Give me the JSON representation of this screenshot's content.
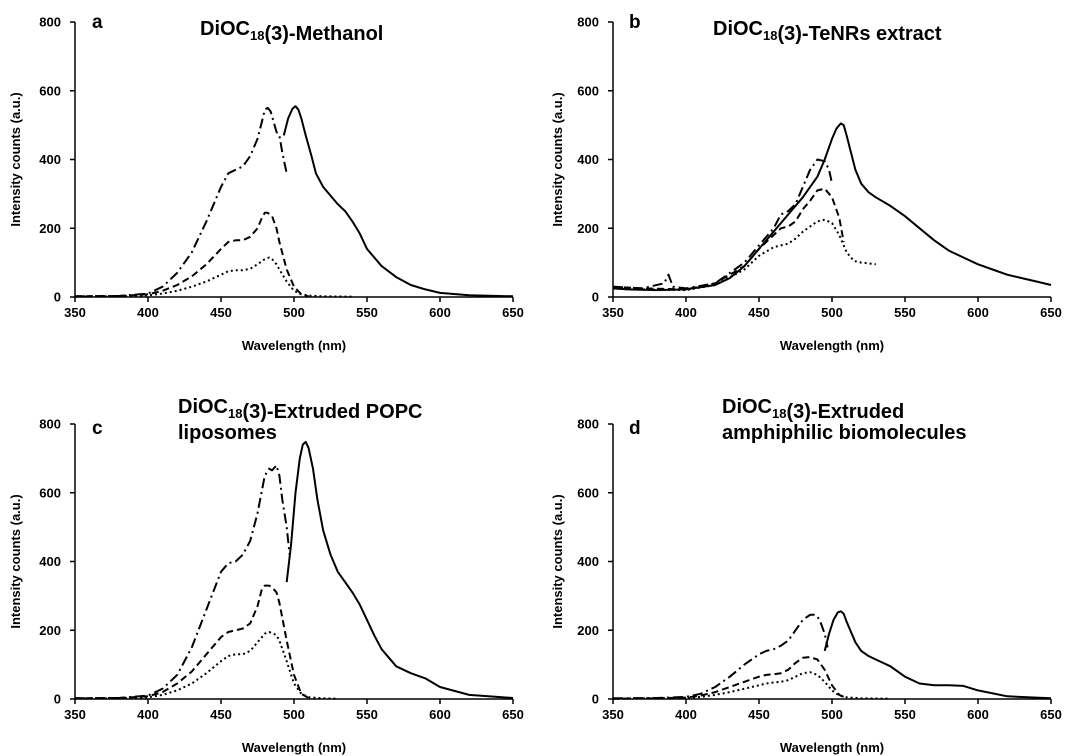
{
  "chart_data": [
    {
      "panel": "a",
      "type": "line",
      "title_parts": [
        {
          "t": "DiOC"
        },
        {
          "t": "18",
          "sub": true
        },
        {
          "t": "(3)-Methanol"
        }
      ],
      "title_lines": 1,
      "xlabel": "Wavelength (nm)",
      "ylabel": "Intensity counts (a.u.)",
      "xlim": [
        350,
        650
      ],
      "ylim": [
        0,
        800
      ],
      "xticks": [
        "350",
        "400",
        "450",
        "500",
        "550",
        "600",
        "650"
      ],
      "yticks": [
        "0",
        "200",
        "400",
        "600",
        "800"
      ],
      "series": [
        {
          "style": "solid",
          "x": [
            493,
            496,
            499,
            501,
            503,
            505,
            508,
            512,
            515,
            520,
            525,
            530,
            535,
            540,
            545,
            550,
            560,
            570,
            580,
            590,
            600,
            620,
            650
          ],
          "y": [
            470,
            520,
            548,
            555,
            545,
            520,
            470,
            410,
            360,
            320,
            295,
            270,
            250,
            220,
            185,
            140,
            90,
            58,
            35,
            22,
            12,
            5,
            2
          ]
        },
        {
          "style": "dashdot",
          "x": [
            350,
            380,
            400,
            410,
            420,
            430,
            440,
            450,
            455,
            460,
            465,
            470,
            475,
            478,
            480,
            482,
            484,
            486,
            488,
            490,
            492,
            494,
            495
          ],
          "y": [
            2,
            3,
            10,
            30,
            70,
            130,
            220,
            320,
            360,
            370,
            380,
            410,
            460,
            510,
            545,
            550,
            540,
            510,
            480,
            470,
            420,
            380,
            360
          ]
        },
        {
          "style": "dash",
          "x": [
            350,
            380,
            400,
            410,
            420,
            430,
            440,
            450,
            455,
            460,
            465,
            470,
            475,
            478,
            480,
            482,
            485,
            488,
            490,
            495,
            500,
            505,
            510
          ],
          "y": [
            2,
            3,
            8,
            18,
            35,
            60,
            95,
            140,
            160,
            165,
            165,
            175,
            200,
            230,
            245,
            245,
            235,
            200,
            160,
            80,
            30,
            8,
            2
          ]
        },
        {
          "style": "dot",
          "x": [
            350,
            380,
            400,
            410,
            420,
            430,
            440,
            450,
            455,
            460,
            465,
            470,
            475,
            480,
            483,
            485,
            488,
            490,
            495,
            500,
            505,
            510,
            520,
            540
          ],
          "y": [
            1,
            2,
            5,
            10,
            18,
            30,
            45,
            65,
            75,
            78,
            78,
            82,
            95,
            110,
            115,
            110,
            95,
            80,
            45,
            18,
            8,
            4,
            2,
            1
          ]
        }
      ]
    },
    {
      "panel": "b",
      "type": "line",
      "title_parts": [
        {
          "t": "DiOC"
        },
        {
          "t": "18",
          "sub": true
        },
        {
          "t": "(3)-TeNRs extract"
        }
      ],
      "title_lines": 1,
      "xlabel": "Wavelength (nm)",
      "ylabel": "Intensity counts (a.u.)",
      "xlim": [
        350,
        650
      ],
      "ylim": [
        0,
        800
      ],
      "xticks": [
        "350",
        "400",
        "450",
        "500",
        "550",
        "600",
        "650"
      ],
      "yticks": [
        "0",
        "200",
        "400",
        "600",
        "800"
      ],
      "series": [
        {
          "style": "solid",
          "x": [
            350,
            360,
            380,
            400,
            420,
            430,
            440,
            450,
            460,
            470,
            480,
            490,
            495,
            500,
            503,
            506,
            508,
            510,
            513,
            516,
            520,
            525,
            530,
            540,
            550,
            560,
            570,
            580,
            590,
            600,
            610,
            620,
            630,
            640,
            650
          ],
          "y": [
            25,
            22,
            20,
            22,
            35,
            55,
            90,
            140,
            190,
            240,
            290,
            350,
            400,
            460,
            490,
            505,
            500,
            470,
            420,
            370,
            330,
            305,
            290,
            265,
            235,
            200,
            165,
            135,
            115,
            95,
            80,
            65,
            55,
            45,
            35
          ]
        },
        {
          "style": "dashdot",
          "x": [
            350,
            370,
            385,
            388,
            391,
            400,
            420,
            440,
            450,
            460,
            465,
            470,
            475,
            480,
            485,
            490,
            495,
            498,
            500
          ],
          "y": [
            30,
            25,
            40,
            65,
            30,
            25,
            40,
            100,
            150,
            200,
            240,
            250,
            270,
            320,
            370,
            400,
            395,
            370,
            330
          ]
        },
        {
          "style": "dash",
          "x": [
            350,
            370,
            400,
            420,
            440,
            450,
            460,
            465,
            470,
            475,
            480,
            485,
            490,
            495,
            500,
            505,
            508
          ],
          "y": [
            30,
            25,
            22,
            40,
            90,
            140,
            180,
            200,
            205,
            220,
            255,
            280,
            310,
            315,
            290,
            230,
            160
          ]
        },
        {
          "style": "dot",
          "x": [
            350,
            370,
            400,
            420,
            440,
            450,
            460,
            465,
            470,
            475,
            480,
            485,
            490,
            495,
            500,
            505,
            510,
            515,
            520,
            525,
            530
          ],
          "y": [
            25,
            22,
            20,
            35,
            80,
            120,
            145,
            150,
            155,
            170,
            190,
            205,
            220,
            225,
            215,
            180,
            130,
            105,
            100,
            98,
            95
          ]
        }
      ]
    },
    {
      "panel": "c",
      "type": "line",
      "title_parts": [
        {
          "t": "DiOC"
        },
        {
          "t": "18",
          "sub": true
        },
        {
          "t": "(3)-Extruded POPC"
        }
      ],
      "title_line2": "liposomes",
      "title_lines": 2,
      "xlabel": "Wavelength (nm)",
      "ylabel": "Intensity counts (a.u.)",
      "xlim": [
        350,
        650
      ],
      "ylim": [
        0,
        800
      ],
      "xticks": [
        "350",
        "400",
        "450",
        "500",
        "550",
        "600",
        "650"
      ],
      "yticks": [
        "0",
        "200",
        "400",
        "600",
        "800"
      ],
      "series": [
        {
          "style": "solid",
          "x": [
            495,
            498,
            501,
            504,
            506,
            508,
            510,
            513,
            516,
            520,
            525,
            530,
            535,
            540,
            545,
            550,
            555,
            560,
            570,
            580,
            590,
            600,
            620,
            650
          ],
          "y": [
            340,
            450,
            600,
            700,
            740,
            748,
            730,
            670,
            580,
            490,
            420,
            370,
            340,
            310,
            275,
            230,
            185,
            145,
            95,
            75,
            60,
            35,
            12,
            3
          ]
        },
        {
          "style": "dashdot",
          "x": [
            350,
            380,
            400,
            410,
            420,
            430,
            440,
            450,
            455,
            460,
            465,
            470,
            475,
            480,
            483,
            485,
            488,
            490,
            492,
            495,
            497
          ],
          "y": [
            2,
            3,
            10,
            30,
            70,
            150,
            260,
            370,
            395,
            400,
            420,
            460,
            540,
            650,
            670,
            665,
            680,
            650,
            580,
            500,
            420
          ]
        },
        {
          "style": "dash",
          "x": [
            350,
            380,
            400,
            410,
            420,
            430,
            440,
            450,
            455,
            460,
            465,
            470,
            475,
            478,
            480,
            483,
            485,
            488,
            490,
            495,
            500,
            505,
            510
          ],
          "y": [
            2,
            3,
            8,
            20,
            45,
            80,
            130,
            180,
            195,
            200,
            205,
            220,
            270,
            320,
            330,
            330,
            325,
            310,
            280,
            170,
            70,
            15,
            3
          ]
        },
        {
          "style": "dot",
          "x": [
            350,
            380,
            400,
            410,
            420,
            430,
            440,
            450,
            455,
            460,
            465,
            470,
            475,
            480,
            483,
            486,
            488,
            490,
            495,
            500,
            505,
            510,
            520,
            530
          ],
          "y": [
            1,
            2,
            5,
            12,
            25,
            45,
            75,
            110,
            125,
            130,
            130,
            140,
            165,
            190,
            195,
            190,
            185,
            170,
            110,
            45,
            15,
            5,
            2,
            1
          ]
        }
      ]
    },
    {
      "panel": "d",
      "type": "line",
      "title_parts": [
        {
          "t": "DiOC"
        },
        {
          "t": "18",
          "sub": true
        },
        {
          "t": "(3)-Extruded"
        }
      ],
      "title_line2": "amphiphilic biomolecules",
      "title_lines": 2,
      "xlabel": "Wavelength (nm)",
      "ylabel": "Intensity counts (a.u.)",
      "xlim": [
        350,
        650
      ],
      "ylim": [
        0,
        800
      ],
      "xticks": [
        "350",
        "400",
        "450",
        "500",
        "550",
        "600",
        "650"
      ],
      "yticks": [
        "0",
        "200",
        "400",
        "600",
        "800"
      ],
      "series": [
        {
          "style": "solid",
          "x": [
            495,
            498,
            501,
            504,
            506,
            508,
            510,
            513,
            516,
            520,
            525,
            530,
            535,
            540,
            545,
            550,
            555,
            560,
            570,
            580,
            590,
            600,
            620,
            650
          ],
          "y": [
            140,
            190,
            230,
            252,
            255,
            248,
            225,
            195,
            165,
            140,
            125,
            115,
            105,
            95,
            80,
            65,
            55,
            45,
            40,
            40,
            38,
            25,
            8,
            2
          ]
        },
        {
          "style": "dashdot",
          "x": [
            350,
            380,
            400,
            410,
            420,
            430,
            440,
            450,
            455,
            460,
            465,
            470,
            475,
            480,
            485,
            488,
            490,
            492,
            495,
            497
          ],
          "y": [
            2,
            3,
            6,
            15,
            35,
            65,
            100,
            130,
            140,
            145,
            155,
            170,
            200,
            230,
            245,
            245,
            240,
            225,
            190,
            150
          ]
        },
        {
          "style": "dash",
          "x": [
            350,
            380,
            400,
            410,
            420,
            430,
            440,
            450,
            455,
            460,
            465,
            470,
            475,
            480,
            485,
            490,
            495,
            500,
            505,
            510
          ],
          "y": [
            1,
            2,
            4,
            10,
            20,
            35,
            50,
            65,
            70,
            72,
            75,
            85,
            105,
            120,
            122,
            115,
            85,
            40,
            12,
            3
          ]
        },
        {
          "style": "dot",
          "x": [
            350,
            380,
            400,
            410,
            420,
            430,
            440,
            450,
            455,
            460,
            465,
            470,
            475,
            480,
            485,
            490,
            495,
            500,
            505,
            510,
            520,
            540
          ],
          "y": [
            1,
            2,
            3,
            6,
            12,
            20,
            30,
            40,
            45,
            48,
            50,
            55,
            65,
            75,
            78,
            70,
            50,
            25,
            10,
            5,
            2,
            1
          ]
        }
      ]
    }
  ]
}
